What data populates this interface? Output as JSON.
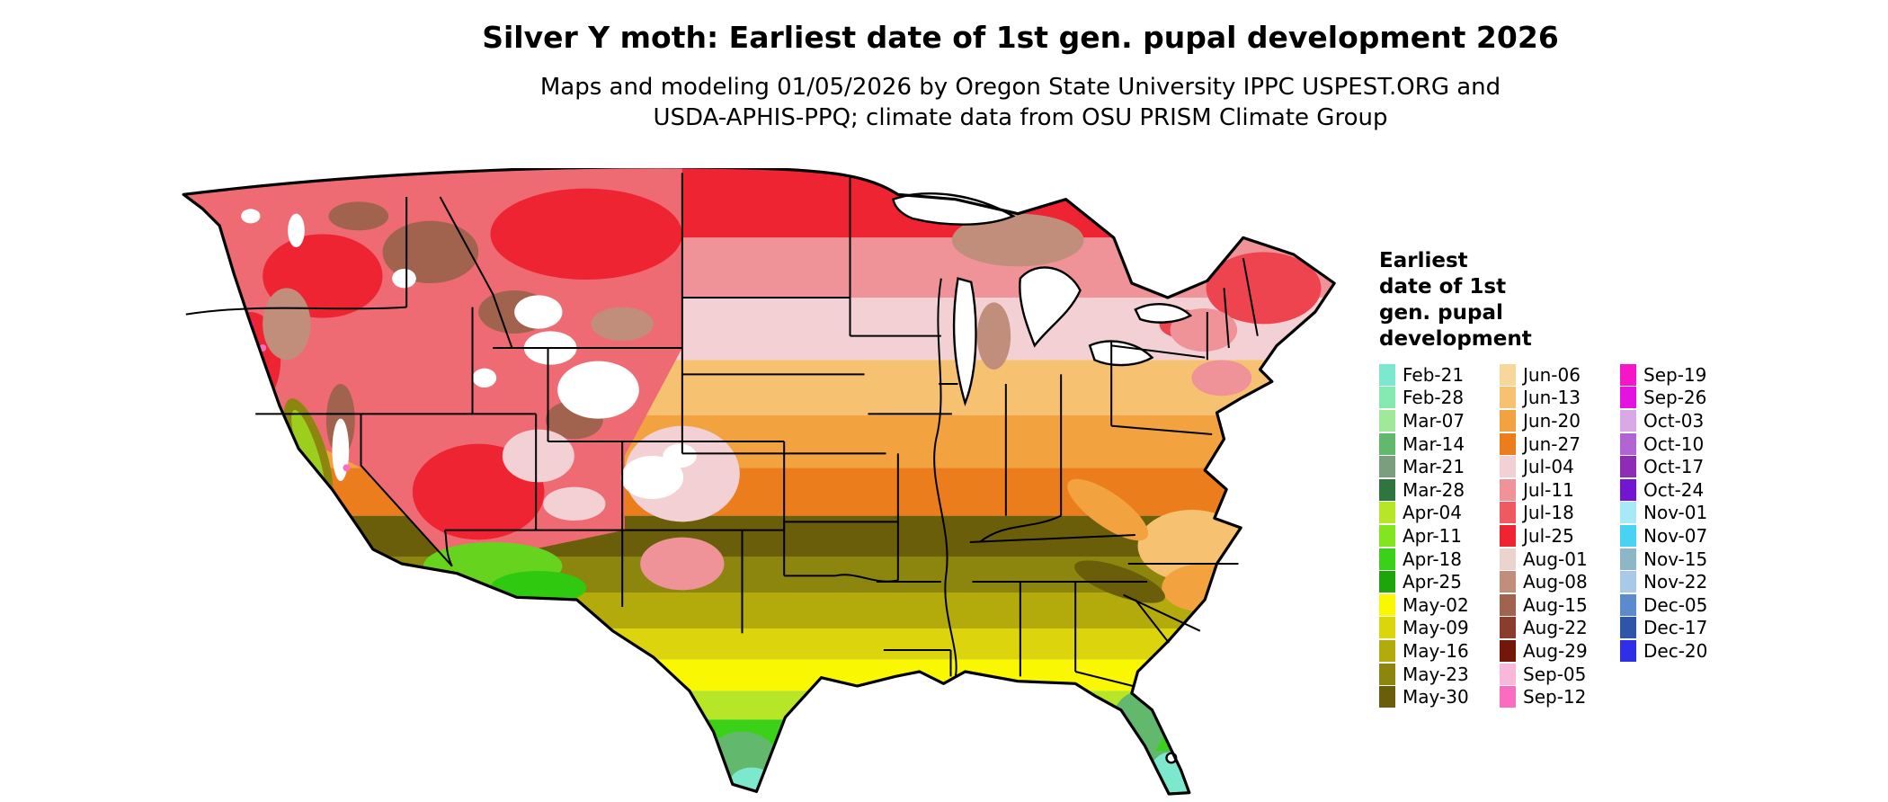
{
  "header": {
    "title": "Silver Y moth: Earliest date of 1st gen. pupal development 2026",
    "subtitle_line1": "Maps and modeling 01/05/2026 by Oregon State University IPPC USPEST.ORG and",
    "subtitle_line2": "USDA-APHIS-PPQ; climate data from OSU PRISM Climate Group"
  },
  "legend": {
    "title_lines": [
      "Earliest",
      "date of 1st",
      "gen. pupal",
      "development"
    ],
    "columns": [
      [
        {
          "label": "Feb-21",
          "color": "#7ce9cf"
        },
        {
          "label": "Feb-28",
          "color": "#86e9b0"
        },
        {
          "label": "Mar-07",
          "color": "#a0e89a"
        },
        {
          "label": "Mar-14",
          "color": "#62b96d"
        },
        {
          "label": "Mar-21",
          "color": "#7b9f7e"
        },
        {
          "label": "Mar-28",
          "color": "#2f7540"
        },
        {
          "label": "Apr-04",
          "color": "#b6e627"
        },
        {
          "label": "Apr-11",
          "color": "#82e51f"
        },
        {
          "label": "Apr-18",
          "color": "#3cd119"
        },
        {
          "label": "Apr-25",
          "color": "#1fa50c"
        },
        {
          "label": "May-02",
          "color": "#f9f802"
        },
        {
          "label": "May-09",
          "color": "#dcd50d"
        },
        {
          "label": "May-16",
          "color": "#b3ab0c"
        },
        {
          "label": "May-23",
          "color": "#8c850e"
        },
        {
          "label": "May-30",
          "color": "#6b5e0b"
        }
      ],
      [
        {
          "label": "Jun-06",
          "color": "#f7d79a"
        },
        {
          "label": "Jun-13",
          "color": "#f6c272"
        },
        {
          "label": "Jun-20",
          "color": "#f2a23f"
        },
        {
          "label": "Jun-27",
          "color": "#eb7d1c"
        },
        {
          "label": "Jul-04",
          "color": "#f3d0d4"
        },
        {
          "label": "Jul-11",
          "color": "#ef9399"
        },
        {
          "label": "Jul-18",
          "color": "#ef5a62"
        },
        {
          "label": "Jul-25",
          "color": "#ef2433"
        },
        {
          "label": "Aug-01",
          "color": "#ead4cd"
        },
        {
          "label": "Aug-08",
          "color": "#c18e7b"
        },
        {
          "label": "Aug-15",
          "color": "#a2634e"
        },
        {
          "label": "Aug-22",
          "color": "#8c3c2d"
        },
        {
          "label": "Aug-29",
          "color": "#731708"
        },
        {
          "label": "Sep-05",
          "color": "#f9b7d9"
        },
        {
          "label": "Sep-12",
          "color": "#f96cc0"
        }
      ],
      [
        {
          "label": "Sep-19",
          "color": "#f715c9"
        },
        {
          "label": "Sep-26",
          "color": "#e513e2"
        },
        {
          "label": "Oct-03",
          "color": "#d9a9e7"
        },
        {
          "label": "Oct-10",
          "color": "#b264d3"
        },
        {
          "label": "Oct-17",
          "color": "#8e2cb6"
        },
        {
          "label": "Oct-24",
          "color": "#7316cf"
        },
        {
          "label": "Nov-01",
          "color": "#a8e9f7"
        },
        {
          "label": "Nov-07",
          "color": "#48d3f2"
        },
        {
          "label": "Nov-15",
          "color": "#8db6c6"
        },
        {
          "label": "Nov-22",
          "color": "#a9c9e9"
        },
        {
          "label": "Dec-05",
          "color": "#5b8bcd"
        },
        {
          "label": "Dec-17",
          "color": "#2f55a8"
        },
        {
          "label": "Dec-20",
          "color": "#2f2fe8"
        }
      ]
    ]
  },
  "map": {
    "bands": [
      {
        "period": "Jul-25",
        "color": "#ef2433"
      },
      {
        "period": "Jul-11",
        "color": "#ef9399"
      },
      {
        "period": "Jul-04",
        "color": "#f3d0d4"
      },
      {
        "period": "Jun-13",
        "color": "#f6c272"
      },
      {
        "period": "Jun-20",
        "color": "#f2a23f"
      },
      {
        "period": "Jun-27",
        "color": "#eb7d1c"
      },
      {
        "period": "May-30",
        "color": "#6b5e0b"
      },
      {
        "period": "May-23",
        "color": "#8c850e"
      },
      {
        "period": "May-16",
        "color": "#b3ab0c"
      },
      {
        "period": "May-09",
        "color": "#dcd50d"
      },
      {
        "period": "May-02",
        "color": "#f9f802"
      },
      {
        "period": "Apr-04",
        "color": "#b6e627"
      },
      {
        "period": "Apr-18",
        "color": "#3cd119"
      },
      {
        "period": "Mar-14",
        "color": "#62b96d"
      },
      {
        "period": "Feb-28",
        "color": "#86e9b0"
      }
    ],
    "overlays": {
      "west_base": "#ee6b74",
      "bright_red": "#ef2433",
      "brown": "#a2634e",
      "tan": "#c18e7b",
      "rose": "#ef9399",
      "pale_pink": "#f3d0d4",
      "snow": "#ffffff",
      "valley_olive": "#8c850e",
      "valley_green": "#9ccf1d",
      "sw_green": "#66d41f",
      "sw_green_dark": "#2fc90f",
      "chartreuse": "#b6e627",
      "coastal_orange": "#f6c272",
      "coastal_orange_deep": "#f2a23f",
      "appalachia_olive": "#6b5e0b",
      "ne_red": "#ee4450",
      "gulf_teal": "#62b96d",
      "gulf_cyan": "#7ce9cf",
      "speck_pink": "#f96cc0",
      "speck_magenta": "#f715c9",
      "water": "#ffffff",
      "border": "#000000"
    }
  }
}
